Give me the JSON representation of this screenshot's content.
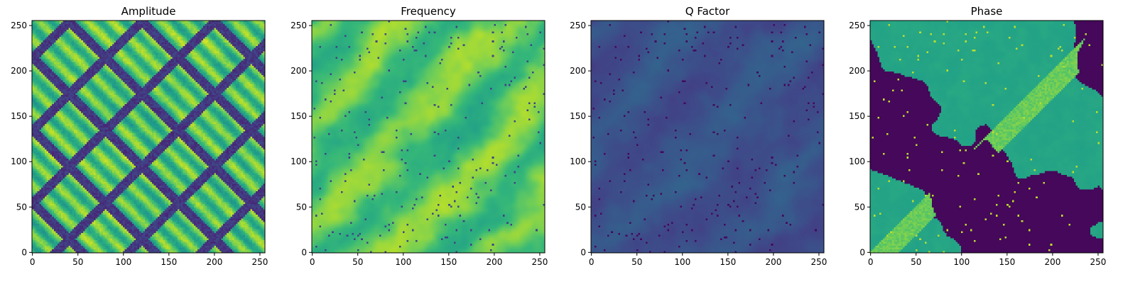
{
  "chart_data": [
    {
      "type": "heatmap",
      "title": "Amplitude",
      "colormap": "viridis",
      "pattern": "diagonal-grid",
      "xlim": [
        0,
        255
      ],
      "ylim": [
        0,
        255
      ],
      "xticks": [
        0,
        50,
        100,
        150,
        200,
        250
      ],
      "yticks": [
        0,
        50,
        100,
        150,
        200,
        250
      ]
    },
    {
      "type": "heatmap",
      "title": "Frequency",
      "colormap": "viridis",
      "pattern": "bright-texture",
      "xlim": [
        0,
        255
      ],
      "ylim": [
        0,
        255
      ],
      "xticks": [
        0,
        50,
        100,
        150,
        200,
        250
      ],
      "yticks": [
        0,
        50,
        100,
        150,
        200,
        250
      ]
    },
    {
      "type": "heatmap",
      "title": "Q Factor",
      "colormap": "viridis",
      "pattern": "dark-texture",
      "xlim": [
        0,
        255
      ],
      "ylim": [
        0,
        255
      ],
      "xticks": [
        0,
        50,
        100,
        150,
        200,
        250
      ],
      "yticks": [
        0,
        50,
        100,
        150,
        200,
        250
      ]
    },
    {
      "type": "heatmap",
      "title": "Phase",
      "colormap": "viridis",
      "pattern": "binary-domains",
      "xlim": [
        0,
        255
      ],
      "ylim": [
        0,
        255
      ],
      "xticks": [
        0,
        50,
        100,
        150,
        200,
        250
      ],
      "yticks": [
        0,
        50,
        100,
        150,
        200,
        250
      ]
    }
  ]
}
